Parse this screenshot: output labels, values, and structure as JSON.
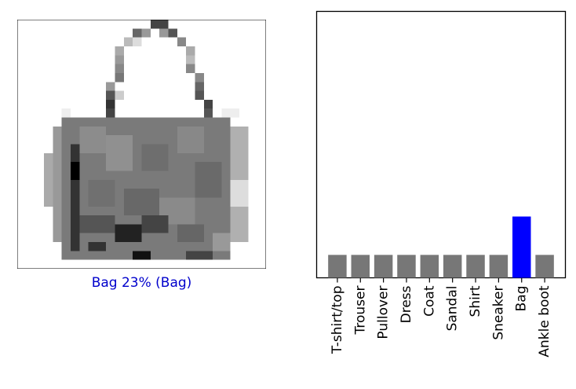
{
  "image_panel": {
    "prediction_label": "Bag 23% (Bag)",
    "label_color": "#0000cc"
  },
  "chart_data": {
    "type": "bar",
    "categories": [
      "T-shirt/top",
      "Trouser",
      "Pullover",
      "Dress",
      "Coat",
      "Sandal",
      "Shirt",
      "Sneaker",
      "Bag",
      "Ankle boot"
    ],
    "values": [
      0.086,
      0.086,
      0.086,
      0.086,
      0.086,
      0.086,
      0.086,
      0.086,
      0.23,
      0.086
    ],
    "ylim": [
      0,
      1
    ],
    "bar_color": "#777777",
    "highlight_color": "#0000ff",
    "highlight_index": 8,
    "grid": false,
    "yticks": false
  }
}
